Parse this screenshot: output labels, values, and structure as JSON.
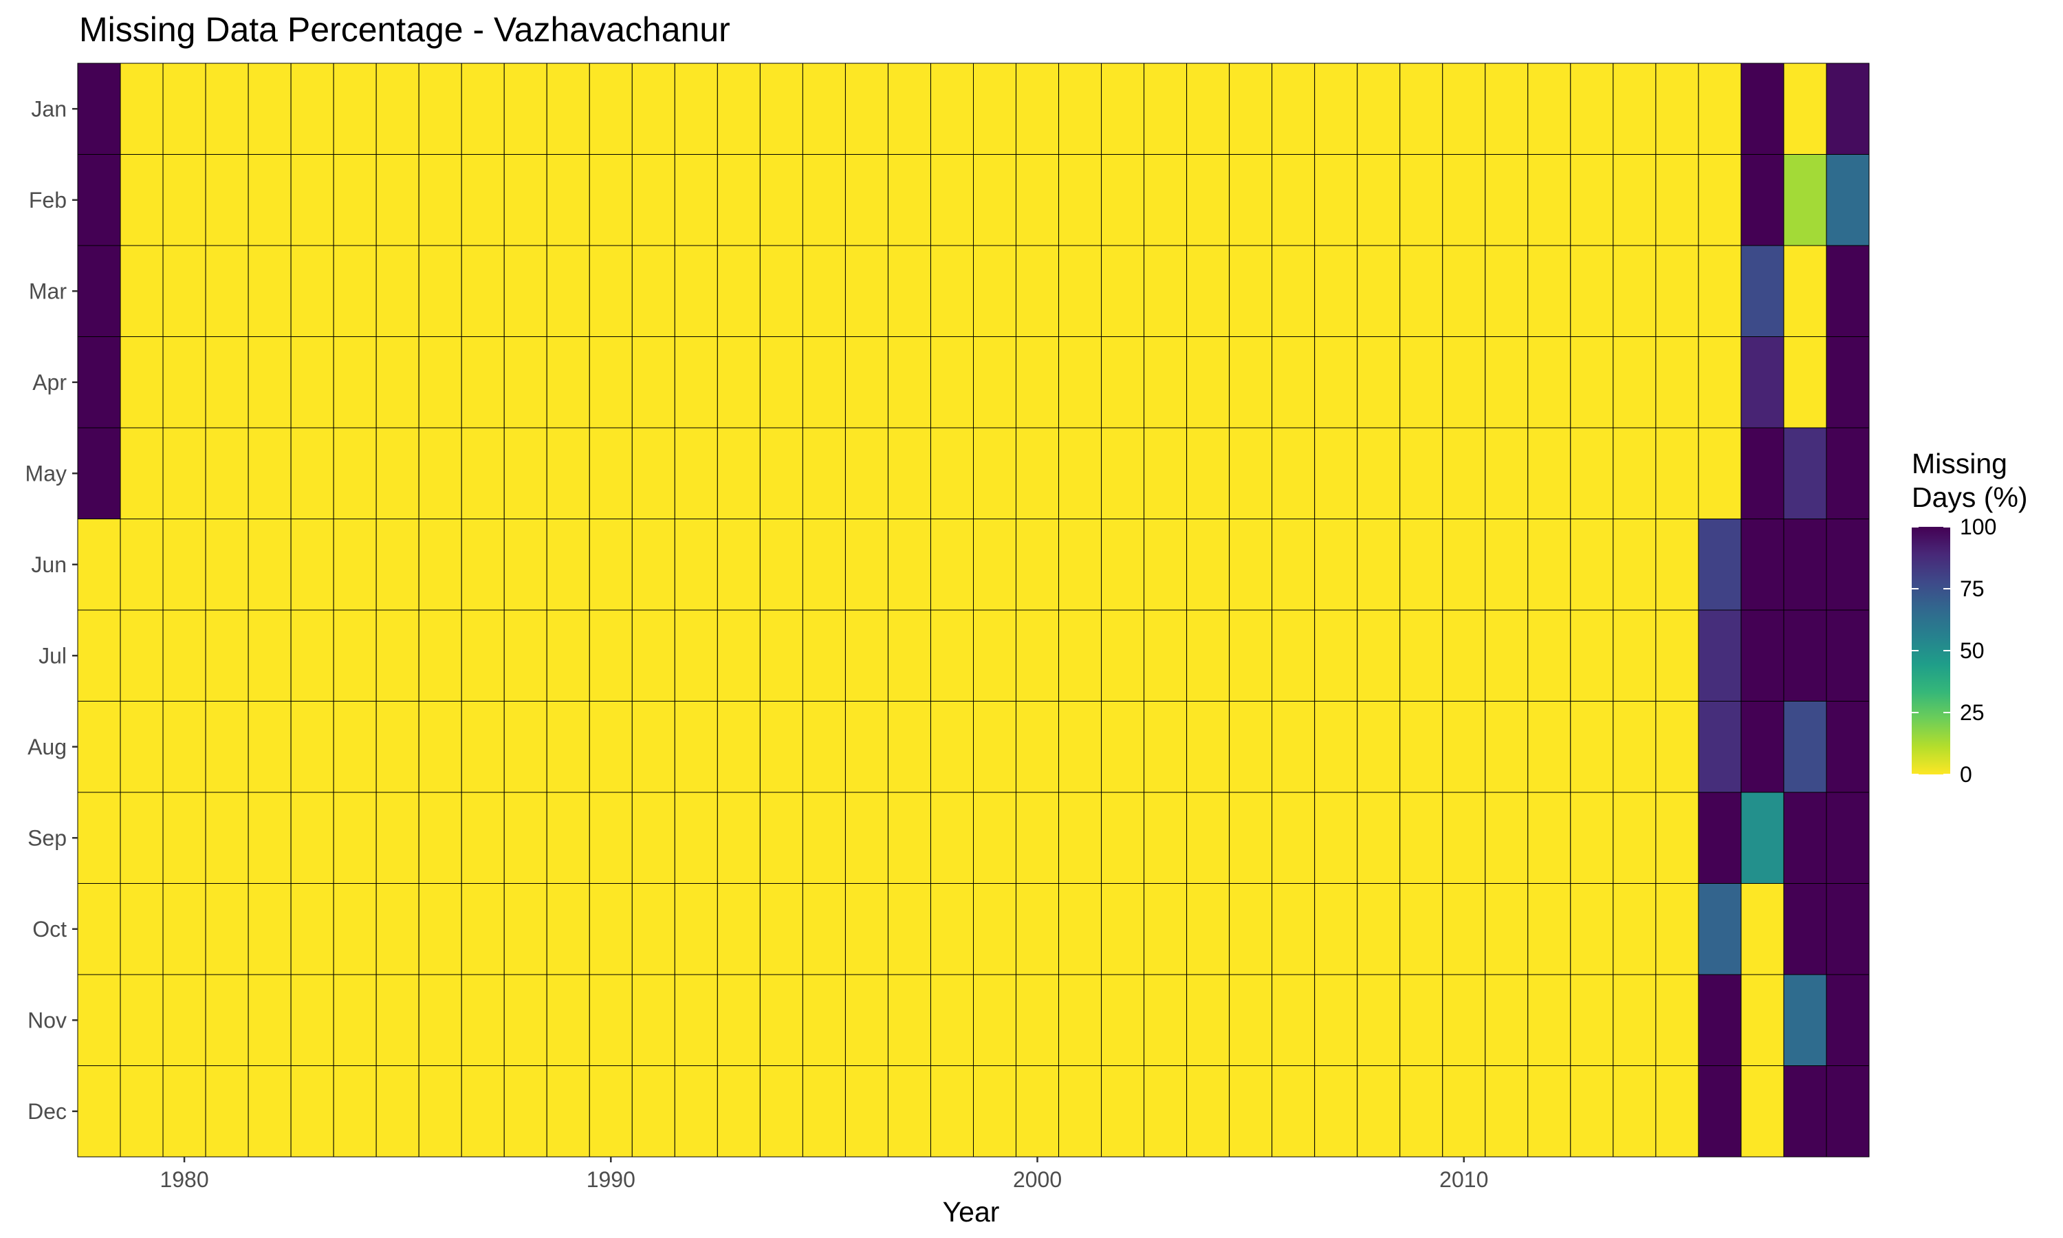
{
  "chart_data": {
    "type": "heatmap",
    "title": "Missing Data Percentage - Vazhavachanur",
    "xlabel": "Year",
    "ylabel": "",
    "x_ticks": [
      "1980",
      "1990",
      "2000",
      "2010"
    ],
    "x_tick_values": [
      1980,
      1990,
      2000,
      2010
    ],
    "x_range": [
      1977.5,
      2019.5
    ],
    "years": [
      1978,
      1979,
      1980,
      1981,
      1982,
      1983,
      1984,
      1985,
      1986,
      1987,
      1988,
      1989,
      1990,
      1991,
      1992,
      1993,
      1994,
      1995,
      1996,
      1997,
      1998,
      1999,
      2000,
      2001,
      2002,
      2003,
      2004,
      2005,
      2006,
      2007,
      2008,
      2009,
      2010,
      2011,
      2012,
      2013,
      2014,
      2015,
      2016,
      2017,
      2018,
      2019
    ],
    "months": [
      "Jan",
      "Feb",
      "Mar",
      "Apr",
      "May",
      "Jun",
      "Jul",
      "Aug",
      "Sep",
      "Oct",
      "Nov",
      "Dec"
    ],
    "default_value": 0,
    "values": [
      {
        "year": 1978,
        "month": "Jan",
        "value": 100
      },
      {
        "year": 1978,
        "month": "Feb",
        "value": 100
      },
      {
        "year": 1978,
        "month": "Mar",
        "value": 100
      },
      {
        "year": 1978,
        "month": "Apr",
        "value": 100
      },
      {
        "year": 1978,
        "month": "May",
        "value": 100
      },
      {
        "year": 2016,
        "month": "Jun",
        "value": 80
      },
      {
        "year": 2016,
        "month": "Jul",
        "value": 87
      },
      {
        "year": 2016,
        "month": "Aug",
        "value": 87
      },
      {
        "year": 2016,
        "month": "Sep",
        "value": 100
      },
      {
        "year": 2016,
        "month": "Oct",
        "value": 68
      },
      {
        "year": 2016,
        "month": "Nov",
        "value": 100
      },
      {
        "year": 2016,
        "month": "Dec",
        "value": 100
      },
      {
        "year": 2017,
        "month": "Jan",
        "value": 100
      },
      {
        "year": 2017,
        "month": "Feb",
        "value": 100
      },
      {
        "year": 2017,
        "month": "Mar",
        "value": 77
      },
      {
        "year": 2017,
        "month": "Apr",
        "value": 90
      },
      {
        "year": 2017,
        "month": "May",
        "value": 100
      },
      {
        "year": 2017,
        "month": "Jun",
        "value": 100
      },
      {
        "year": 2017,
        "month": "Jul",
        "value": 100
      },
      {
        "year": 2017,
        "month": "Aug",
        "value": 100
      },
      {
        "year": 2017,
        "month": "Sep",
        "value": 50
      },
      {
        "year": 2017,
        "month": "Oct",
        "value": 0
      },
      {
        "year": 2017,
        "month": "Nov",
        "value": 0
      },
      {
        "year": 2017,
        "month": "Dec",
        "value": 0
      },
      {
        "year": 2018,
        "month": "Jan",
        "value": 0
      },
      {
        "year": 2018,
        "month": "Feb",
        "value": 14
      },
      {
        "year": 2018,
        "month": "Mar",
        "value": 0
      },
      {
        "year": 2018,
        "month": "Apr",
        "value": 0
      },
      {
        "year": 2018,
        "month": "May",
        "value": 87
      },
      {
        "year": 2018,
        "month": "Jun",
        "value": 100
      },
      {
        "year": 2018,
        "month": "Jul",
        "value": 100
      },
      {
        "year": 2018,
        "month": "Aug",
        "value": 77
      },
      {
        "year": 2018,
        "month": "Sep",
        "value": 100
      },
      {
        "year": 2018,
        "month": "Oct",
        "value": 100
      },
      {
        "year": 2018,
        "month": "Nov",
        "value": 65
      },
      {
        "year": 2018,
        "month": "Dec",
        "value": 100
      },
      {
        "year": 2019,
        "month": "Jan",
        "value": 97
      },
      {
        "year": 2019,
        "month": "Feb",
        "value": 65
      },
      {
        "year": 2019,
        "month": "Mar",
        "value": 100
      },
      {
        "year": 2019,
        "month": "Apr",
        "value": 100
      },
      {
        "year": 2019,
        "month": "May",
        "value": 100
      },
      {
        "year": 2019,
        "month": "Jun",
        "value": 100
      },
      {
        "year": 2019,
        "month": "Jul",
        "value": 100
      },
      {
        "year": 2019,
        "month": "Aug",
        "value": 100
      },
      {
        "year": 2019,
        "month": "Sep",
        "value": 100
      },
      {
        "year": 2019,
        "month": "Oct",
        "value": 100
      },
      {
        "year": 2019,
        "month": "Nov",
        "value": 100
      },
      {
        "year": 2019,
        "month": "Dec",
        "value": 100
      }
    ],
    "legend": {
      "title_line1": "Missing",
      "title_line2": "Days (%)",
      "ticks": [
        "100",
        "75",
        "50",
        "25",
        "0"
      ],
      "tick_values": [
        100,
        75,
        50,
        25,
        0
      ],
      "range": [
        0,
        100
      ],
      "placement": "right"
    },
    "colormap": "viridis",
    "color_stops": [
      "#fde725",
      "#b5de2b",
      "#6ece58",
      "#35b779",
      "#1f9e89",
      "#26828e",
      "#31688e",
      "#3e4989",
      "#482878",
      "#440154"
    ],
    "cell_border_color": "#000000",
    "grid": false
  }
}
